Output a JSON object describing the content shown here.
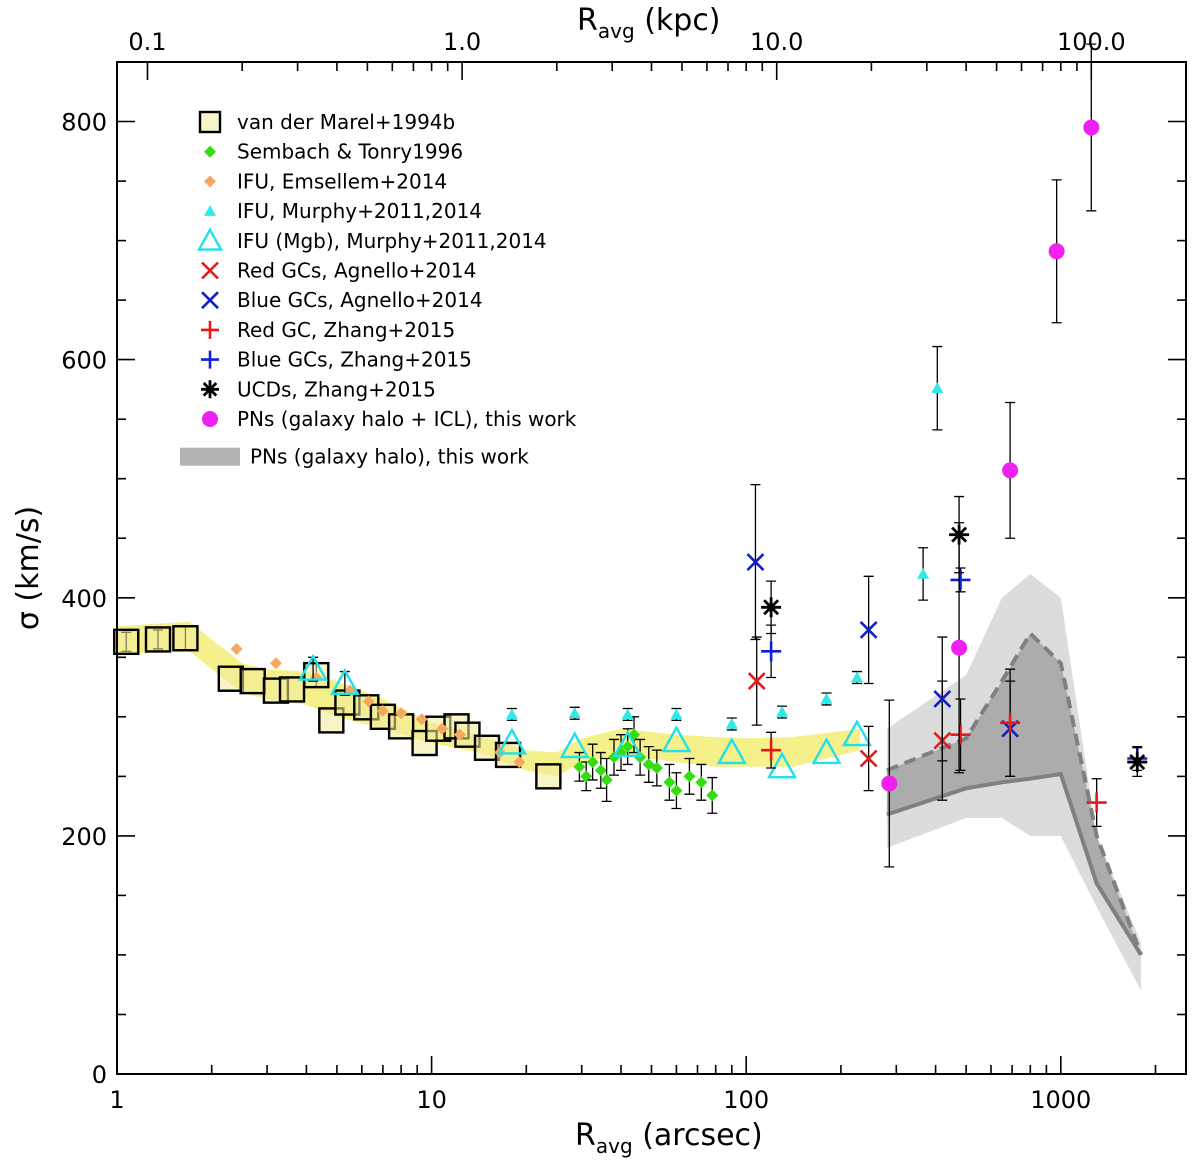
{
  "chart_data": {
    "type": "scatter",
    "title": "",
    "xlabel": {
      "main": "R",
      "sub": "avg",
      "unit": " (arcsec)"
    },
    "x2label": {
      "main": "R",
      "sub": "avg",
      "unit": " (kpc)"
    },
    "ylabel": "σ (km/s)",
    "xscale": "log",
    "xlim": [
      1,
      2500
    ],
    "ylim": [
      0,
      850
    ],
    "x_ticks": [
      {
        "value": 1,
        "label": "1"
      },
      {
        "value": 10,
        "label": "10"
      },
      {
        "value": 100,
        "label": "100"
      },
      {
        "value": 1000,
        "label": "1000"
      }
    ],
    "y_ticks": [
      {
        "value": 0,
        "label": "0"
      },
      {
        "value": 200,
        "label": "200"
      },
      {
        "value": 400,
        "label": "400"
      },
      {
        "value": 600,
        "label": "600"
      },
      {
        "value": 800,
        "label": "800"
      }
    ],
    "top_ticks": [
      {
        "arcsec": 1.25,
        "label": "0.1"
      },
      {
        "arcsec": 12.5,
        "label": "1.0"
      },
      {
        "arcsec": 125,
        "label": "10.0"
      },
      {
        "arcsec": 1250,
        "label": "100.0"
      }
    ],
    "legend_position": "top-left",
    "bands": [
      {
        "name": "yellow central profile",
        "color": "#f5f08a",
        "x": [
          1,
          1.7,
          2,
          2.5,
          3,
          4,
          5,
          7,
          10,
          14,
          20,
          25,
          30,
          40,
          60,
          80,
          100,
          140,
          230
        ],
        "lower": [
          352,
          355,
          340,
          320,
          315,
          310,
          300,
          290,
          278,
          270,
          255,
          250,
          262,
          268,
          262,
          258,
          258,
          258,
          272
        ],
        "upper": [
          376,
          380,
          365,
          345,
          340,
          338,
          330,
          315,
          295,
          285,
          272,
          270,
          282,
          290,
          285,
          283,
          282,
          283,
          290
        ]
      },
      {
        "name": "PNs (galaxy halo) outer band",
        "color": "#dcdcdc",
        "x": [
          280,
          500,
          650,
          800,
          1000,
          1300,
          1800
        ],
        "lower": [
          190,
          215,
          215,
          200,
          200,
          140,
          70
        ],
        "upper": [
          290,
          335,
          400,
          420,
          400,
          200,
          110
        ]
      },
      {
        "name": "PNs (galaxy halo) inner band",
        "color": "#acacac",
        "x": [
          280,
          500,
          650,
          800,
          1000,
          1300,
          1800
        ],
        "lower": [
          218,
          240,
          245,
          248,
          252,
          160,
          100
        ],
        "upper": [
          255,
          282,
          330,
          370,
          345,
          200,
          100
        ]
      }
    ],
    "lines": [
      {
        "name": "PNs halo solid",
        "color": "#808080",
        "dash": "",
        "x": [
          280,
          500,
          650,
          800,
          1000,
          1300,
          1800
        ],
        "y": [
          218,
          240,
          245,
          248,
          252,
          160,
          100
        ]
      },
      {
        "name": "PNs halo dashed",
        "color": "#808080",
        "dash": "12 7",
        "x": [
          280,
          500,
          650,
          800,
          1000,
          1300,
          1800
        ],
        "y": [
          255,
          282,
          330,
          370,
          345,
          200,
          100
        ]
      }
    ],
    "series": [
      {
        "name": "van der Marel+1994b",
        "marker": "square-open",
        "color": "#000000",
        "size": 24,
        "points": [
          [
            1.07,
            363,
            8
          ],
          [
            1.35,
            365,
            8
          ],
          [
            1.65,
            366,
            10
          ],
          [
            2.3,
            332,
            0
          ],
          [
            2.7,
            330,
            0
          ],
          [
            3.2,
            322,
            0
          ],
          [
            3.6,
            323,
            0
          ],
          [
            4.3,
            335,
            10
          ],
          [
            4.8,
            297,
            0
          ],
          [
            5.4,
            312,
            0
          ],
          [
            6.2,
            308,
            0
          ],
          [
            7.0,
            300,
            0
          ],
          [
            8.0,
            292,
            0
          ],
          [
            9.5,
            278,
            0
          ],
          [
            10.5,
            290,
            0
          ],
          [
            12.0,
            292,
            0
          ],
          [
            13.0,
            285,
            0
          ],
          [
            15.0,
            274,
            0
          ],
          [
            17.5,
            268,
            0
          ],
          [
            23.5,
            250,
            0
          ]
        ]
      },
      {
        "name": "Sembach & Tonry1996",
        "marker": "diamond",
        "color": "#33dd10",
        "size": 12,
        "points": [
          [
            29.5,
            258,
            12
          ],
          [
            31,
            250,
            12
          ],
          [
            32.5,
            262,
            15
          ],
          [
            34.5,
            255,
            15
          ],
          [
            36,
            247,
            18
          ],
          [
            38,
            266,
            15
          ],
          [
            40,
            270,
            15
          ],
          [
            42,
            275,
            15
          ],
          [
            44,
            285,
            15
          ],
          [
            46,
            266,
            15
          ],
          [
            49,
            260,
            15
          ],
          [
            52,
            257,
            15
          ],
          [
            57,
            245,
            15
          ],
          [
            60,
            238,
            15
          ],
          [
            66,
            250,
            15
          ],
          [
            72,
            245,
            15
          ],
          [
            78,
            234,
            15
          ]
        ]
      },
      {
        "name": "IFU, Emsellem+2014",
        "marker": "diamond",
        "color": "#f4a860",
        "size": 12,
        "points": [
          [
            2.4,
            357,
            0
          ],
          [
            3.2,
            345,
            0
          ],
          [
            4.3,
            333,
            0
          ],
          [
            5.5,
            322,
            0
          ],
          [
            6.3,
            313,
            0
          ],
          [
            7.0,
            305,
            0
          ],
          [
            8.0,
            303,
            0
          ],
          [
            9.3,
            298,
            0
          ],
          [
            10.8,
            290,
            0
          ],
          [
            12.3,
            285,
            0
          ],
          [
            16.5,
            270,
            0
          ],
          [
            19.0,
            262,
            0
          ]
        ]
      },
      {
        "name": "IFU, Murphy+2011,2014",
        "marker": "triangle-filled",
        "color": "#30e8e8",
        "size": 12,
        "points": [
          [
            18,
            302,
            5
          ],
          [
            28.5,
            303,
            5
          ],
          [
            42,
            302,
            5
          ],
          [
            60,
            302,
            5
          ],
          [
            90,
            294,
            5
          ],
          [
            130,
            304,
            5
          ],
          [
            180,
            315,
            5
          ],
          [
            225,
            333,
            5
          ],
          [
            365,
            420,
            22
          ],
          [
            405,
            576,
            35
          ]
        ]
      },
      {
        "name": "IFU (Mgb), Murphy+2011,2014",
        "marker": "triangle-open",
        "color": "#20e0e8",
        "size": 26,
        "points": [
          [
            4.2,
            340,
            10
          ],
          [
            5.3,
            328,
            10
          ],
          [
            18,
            278,
            0
          ],
          [
            28.5,
            275,
            0
          ],
          [
            42,
            276,
            0
          ],
          [
            60,
            280,
            0
          ],
          [
            90,
            270,
            0
          ],
          [
            130,
            258,
            0
          ],
          [
            180,
            270,
            0
          ],
          [
            225,
            285,
            0
          ]
        ]
      },
      {
        "name": "Red GCs, Agnello+2014",
        "marker": "x",
        "color": "#e81818",
        "size": 16,
        "points": [
          [
            108,
            330,
            37
          ],
          [
            245,
            265,
            27
          ],
          [
            420,
            280,
            50
          ]
        ]
      },
      {
        "name": "Blue GCs, Agnello+2014",
        "marker": "x",
        "color": "#1020c8",
        "size": 16,
        "points": [
          [
            107,
            430,
            65
          ],
          [
            245,
            373,
            45
          ],
          [
            420,
            315,
            52
          ],
          [
            690,
            290,
            40
          ]
        ]
      },
      {
        "name": "Red GC, Zhang+2015",
        "marker": "plus",
        "color": "#e81818",
        "size": 20,
        "points": [
          [
            120,
            272,
            15
          ],
          [
            480,
            285,
            30
          ],
          [
            690,
            295,
            45
          ],
          [
            1300,
            228,
            20
          ]
        ]
      },
      {
        "name": "Blue GCs, Zhang+2015",
        "marker": "plus",
        "color": "#1020d8",
        "size": 20,
        "points": [
          [
            120,
            355,
            22
          ],
          [
            480,
            415,
            10
          ],
          [
            1750,
            265,
            10
          ]
        ]
      },
      {
        "name": "UCDs, Zhang+2015",
        "marker": "asterisk",
        "color": "#000000",
        "size": 20,
        "points": [
          [
            120,
            392,
            22
          ],
          [
            475,
            453,
            32
          ],
          [
            1750,
            262,
            12
          ]
        ]
      },
      {
        "name": "PNs (galaxy halo + ICL), this work",
        "marker": "circle",
        "color": "#f020f0",
        "size": 16,
        "points": [
          [
            285,
            244,
            70
          ],
          [
            475,
            358,
            105
          ],
          [
            690,
            507,
            57
          ],
          [
            970,
            691,
            60
          ],
          [
            1250,
            795,
            70
          ]
        ]
      }
    ],
    "legend": [
      {
        "label": "van der Marel+1994b",
        "marker": "square-open",
        "color": "#000000"
      },
      {
        "label": "Sembach & Tonry1996",
        "marker": "diamond",
        "color": "#33dd10"
      },
      {
        "label": "IFU, Emsellem+2014",
        "marker": "diamond",
        "color": "#f4a860"
      },
      {
        "label": "IFU, Murphy+2011,2014",
        "marker": "triangle-filled",
        "color": "#30e8e8"
      },
      {
        "label": "IFU (Mgb), Murphy+2011,2014",
        "marker": "triangle-open",
        "color": "#20e0e8"
      },
      {
        "label": "Red GCs, Agnello+2014",
        "marker": "x",
        "color": "#e81818"
      },
      {
        "label": "Blue GCs, Agnello+2014",
        "marker": "x",
        "color": "#1020c8"
      },
      {
        "label": "Red GC, Zhang+2015",
        "marker": "plus",
        "color": "#e81818"
      },
      {
        "label": "Blue GCs, Zhang+2015",
        "marker": "plus",
        "color": "#1020d8"
      },
      {
        "label": "UCDs, Zhang+2015",
        "marker": "asterisk",
        "color": "#000000"
      },
      {
        "label": "PNs (galaxy halo + ICL), this work",
        "marker": "circle",
        "color": "#f020f0"
      },
      {
        "label": "PNs (galaxy halo), this work",
        "marker": "band",
        "color": "#b4b4b4"
      }
    ]
  }
}
